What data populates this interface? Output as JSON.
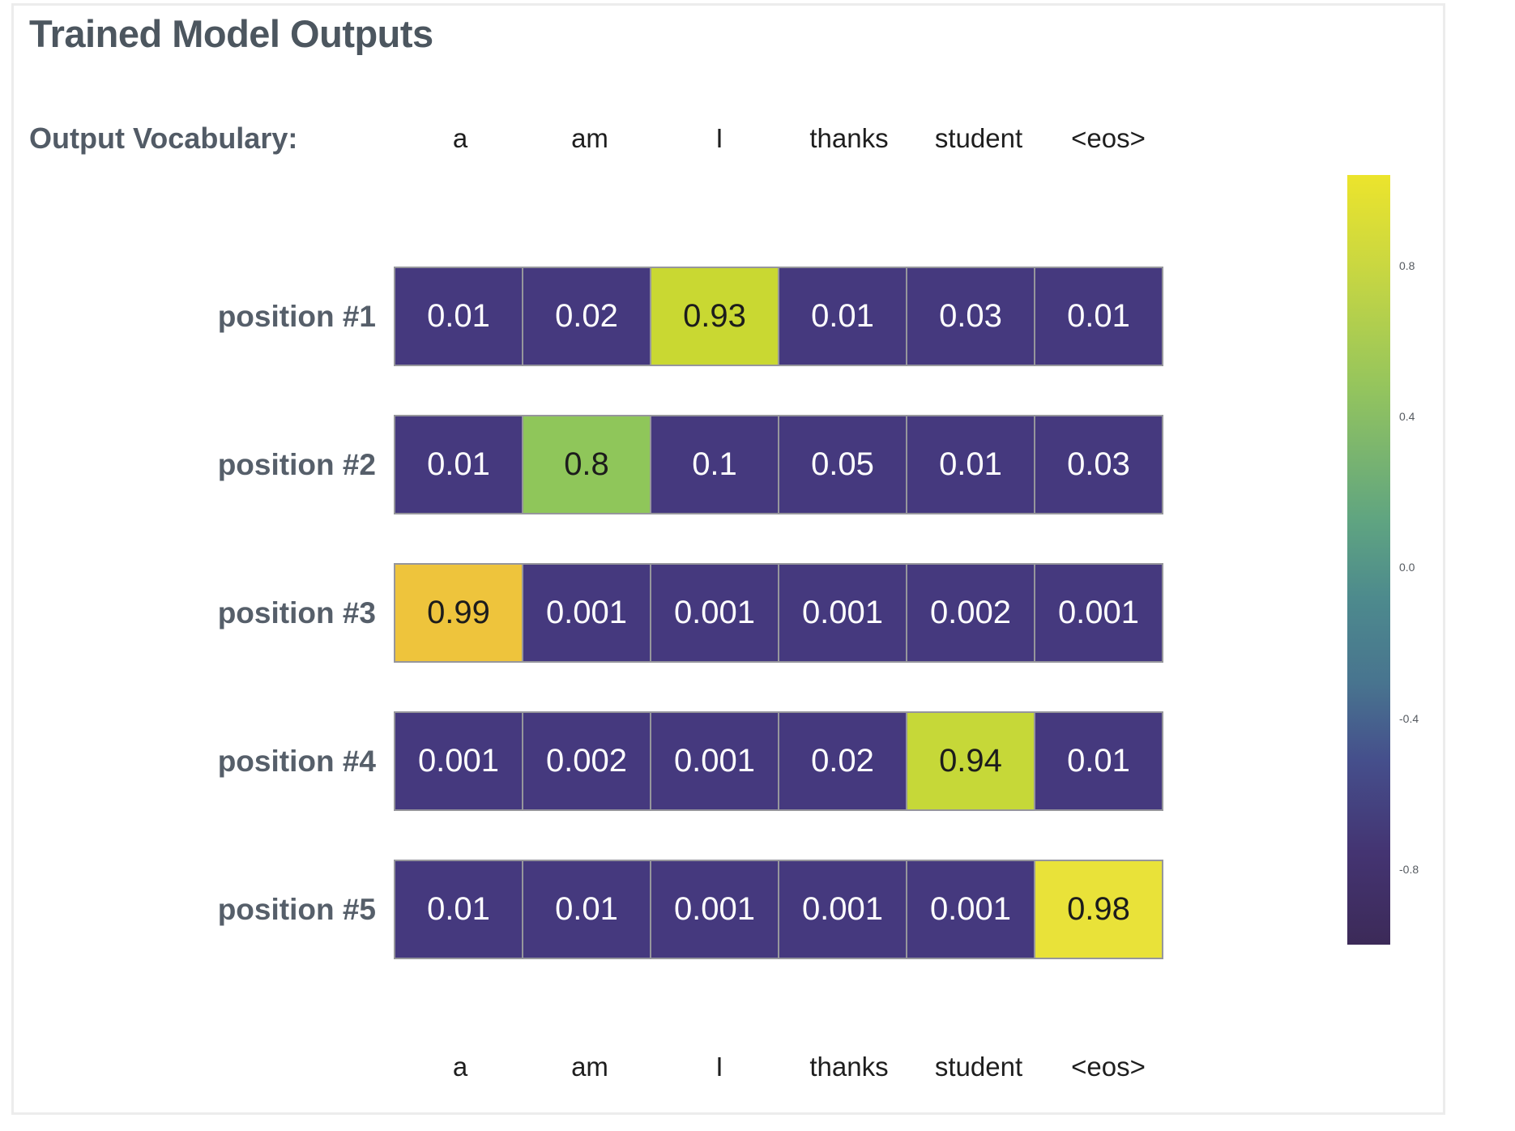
{
  "figure": {
    "title": "Trained Model Outputs",
    "vocab_label": "Output Vocabulary:"
  },
  "chart_data": {
    "type": "heatmap",
    "title": "Trained Model Outputs",
    "columns": [
      "a",
      "am",
      "I",
      "thanks",
      "student",
      "<eos>"
    ],
    "bottom_labels": [
      "a",
      "am",
      "I",
      "thanks",
      "student",
      "<eos>"
    ],
    "rows": [
      {
        "label": "position #1",
        "values": [
          "0.01",
          "0.02",
          "0.93",
          "0.01",
          "0.03",
          "0.01"
        ]
      },
      {
        "label": "position #2",
        "values": [
          "0.01",
          "0.8",
          "0.1",
          "0.05",
          "0.01",
          "0.03"
        ]
      },
      {
        "label": "position #3",
        "values": [
          "0.99",
          "0.001",
          "0.001",
          "0.001",
          "0.002",
          "0.001"
        ]
      },
      {
        "label": "position #4",
        "values": [
          "0.001",
          "0.002",
          "0.001",
          "0.02",
          "0.94",
          "0.01"
        ]
      },
      {
        "label": "position #5",
        "values": [
          "0.01",
          "0.01",
          "0.001",
          "0.001",
          "0.001",
          "0.98"
        ]
      }
    ],
    "highlight_threshold": 0.5,
    "colors": {
      "cell_base": "#45397E",
      "cell_text_light": "#FFFFFF",
      "cell_text_dark": "#1C1C1C",
      "cell_border": "#96969C",
      "highlights": {
        "0.8": "#8FC65A",
        "0.93": "#C9D832",
        "0.94": "#C6D838",
        "0.98": "#E9E239",
        "0.99": "#EEC43C"
      },
      "highlight_fallback": "#C9D832"
    },
    "colorbar": {
      "ticks": [
        "0.8",
        "0.4",
        "0.0",
        "-0.4",
        "-0.8"
      ],
      "vmin": -1.0,
      "vmax": 1.04,
      "gradient": [
        {
          "color": "#ECE42C",
          "pos": 0
        },
        {
          "color": "#C9D741",
          "pos": 12
        },
        {
          "color": "#93C45E",
          "pos": 28
        },
        {
          "color": "#5FA481",
          "pos": 45
        },
        {
          "color": "#4D8A8D",
          "pos": 55
        },
        {
          "color": "#48748F",
          "pos": 66
        },
        {
          "color": "#454F8C",
          "pos": 76
        },
        {
          "color": "#443472",
          "pos": 88
        },
        {
          "color": "#3C2A58",
          "pos": 100
        }
      ]
    }
  }
}
